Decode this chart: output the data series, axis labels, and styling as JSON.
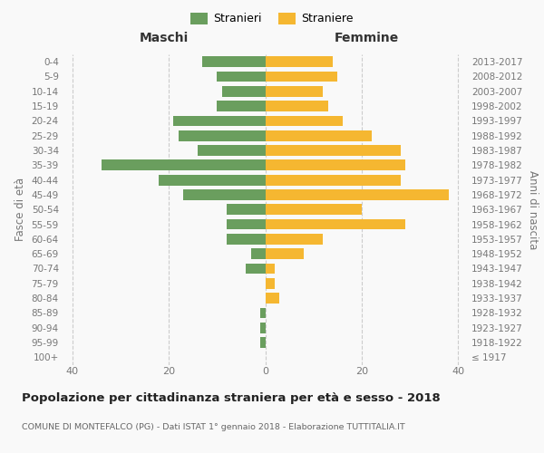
{
  "age_groups": [
    "100+",
    "95-99",
    "90-94",
    "85-89",
    "80-84",
    "75-79",
    "70-74",
    "65-69",
    "60-64",
    "55-59",
    "50-54",
    "45-49",
    "40-44",
    "35-39",
    "30-34",
    "25-29",
    "20-24",
    "15-19",
    "10-14",
    "5-9",
    "0-4"
  ],
  "birth_years": [
    "≤ 1917",
    "1918-1922",
    "1923-1927",
    "1928-1932",
    "1933-1937",
    "1938-1942",
    "1943-1947",
    "1948-1952",
    "1953-1957",
    "1958-1962",
    "1963-1967",
    "1968-1972",
    "1973-1977",
    "1978-1982",
    "1983-1987",
    "1988-1992",
    "1993-1997",
    "1998-2002",
    "2003-2007",
    "2008-2012",
    "2013-2017"
  ],
  "maschi": [
    0,
    1,
    1,
    1,
    0,
    0,
    4,
    3,
    8,
    8,
    8,
    17,
    22,
    34,
    14,
    18,
    19,
    10,
    9,
    10,
    13
  ],
  "femmine": [
    0,
    0,
    0,
    0,
    3,
    2,
    2,
    8,
    12,
    29,
    20,
    38,
    28,
    29,
    28,
    22,
    16,
    13,
    12,
    15,
    14
  ],
  "maschi_color": "#6a9e5e",
  "femmine_color": "#f5b731",
  "background_color": "#f9f9f9",
  "grid_color": "#cccccc",
  "title": "Popolazione per cittadinanza straniera per età e sesso - 2018",
  "subtitle": "COMUNE DI MONTEFALCO (PG) - Dati ISTAT 1° gennaio 2018 - Elaborazione TUTTITALIA.IT",
  "ylabel_left": "Fasce di età",
  "ylabel_right": "Anni di nascita",
  "xlabel_maschi": "Maschi",
  "xlabel_femmine": "Femmine",
  "legend_stranieri": "Stranieri",
  "legend_straniere": "Straniere",
  "xlim": 42,
  "label_color": "#777777"
}
